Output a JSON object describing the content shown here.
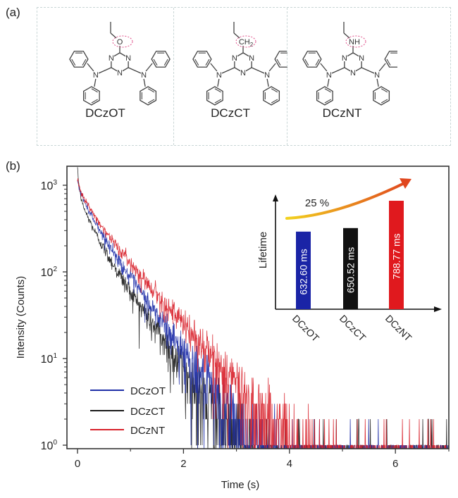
{
  "figure": {
    "panel_a_label": "(a)",
    "panel_b_label": "(b)",
    "molecules": [
      {
        "name": "DCzOT",
        "substituent": "O",
        "linker": "ethoxy"
      },
      {
        "name": "DCzCT",
        "substituent": "CH2",
        "linker": "propyl"
      },
      {
        "name": "DCzNT",
        "substituent": "NH",
        "linker": "ethylamino"
      }
    ],
    "atom_labels": {
      "nitrogen": "N",
      "o": "O",
      "ch": "CH",
      "sub2": "2",
      "nh": "NH"
    }
  },
  "chart_data": {
    "type": "line",
    "title": "",
    "xlabel": "Time (s)",
    "ylabel": "Intensity (Counts)",
    "xlim": [
      0,
      7
    ],
    "ylim_log10": [
      0,
      3.16
    ],
    "yscale": "log",
    "x_ticks": [
      0,
      2,
      4,
      6
    ],
    "x_minor_ticks": [
      1,
      3,
      5
    ],
    "y_ticks": [
      {
        "value": 1000,
        "base": "10",
        "exp": "3"
      },
      {
        "value": 100,
        "base": "10",
        "exp": "2"
      },
      {
        "value": 10,
        "base": "10",
        "exp": "1"
      },
      {
        "value": 1,
        "base": "10",
        "exp": "0"
      }
    ],
    "grid": false,
    "legend": {
      "placement": "bottom-left"
    },
    "series": [
      {
        "name": "DCzOT",
        "color": "#1f2fa8",
        "peak": 1100,
        "components": [
          {
            "amp": 560,
            "tau": 0.52
          },
          {
            "amp": 380,
            "tau": 0.22
          },
          {
            "amp": 160,
            "tau": 0.04
          }
        ],
        "approx_points": [
          [
            0,
            1100
          ],
          [
            1,
            180
          ],
          [
            2,
            44
          ],
          [
            3,
            10
          ],
          [
            4,
            2
          ]
        ]
      },
      {
        "name": "DCzCT",
        "color": "#1a1a1a",
        "peak": 1500,
        "components": [
          {
            "amp": 420,
            "tau": 0.5
          },
          {
            "amp": 380,
            "tau": 0.2
          },
          {
            "amp": 700,
            "tau": 0.03
          }
        ],
        "approx_points": [
          [
            0,
            1500
          ],
          [
            1,
            135
          ],
          [
            2,
            30
          ],
          [
            3,
            5
          ],
          [
            4,
            1
          ]
        ]
      },
      {
        "name": "DCzNT",
        "color": "#d8202a",
        "peak": 1200,
        "components": [
          {
            "amp": 620,
            "tau": 0.62
          },
          {
            "amp": 330,
            "tau": 0.22
          },
          {
            "amp": 250,
            "tau": 0.04
          }
        ],
        "approx_points": [
          [
            0,
            1200
          ],
          [
            1,
            260
          ],
          [
            2,
            77
          ],
          [
            3,
            25
          ],
          [
            4,
            7
          ],
          [
            5,
            2
          ]
        ]
      }
    ],
    "inset": {
      "type": "bar",
      "ylabel": "Lifetime",
      "annotation": "25 %",
      "categories": [
        "DCzOT",
        "DCzCT",
        "DCzNT"
      ],
      "values": [
        632.6,
        650.52,
        788.77
      ],
      "value_labels": [
        "632.60 ms",
        "650.52 ms",
        "788.77 ms"
      ],
      "colors": [
        "#1a24a6",
        "#111111",
        "#e0191e"
      ],
      "arrow_colors": [
        "#f2d21e",
        "#e0461e"
      ]
    }
  }
}
